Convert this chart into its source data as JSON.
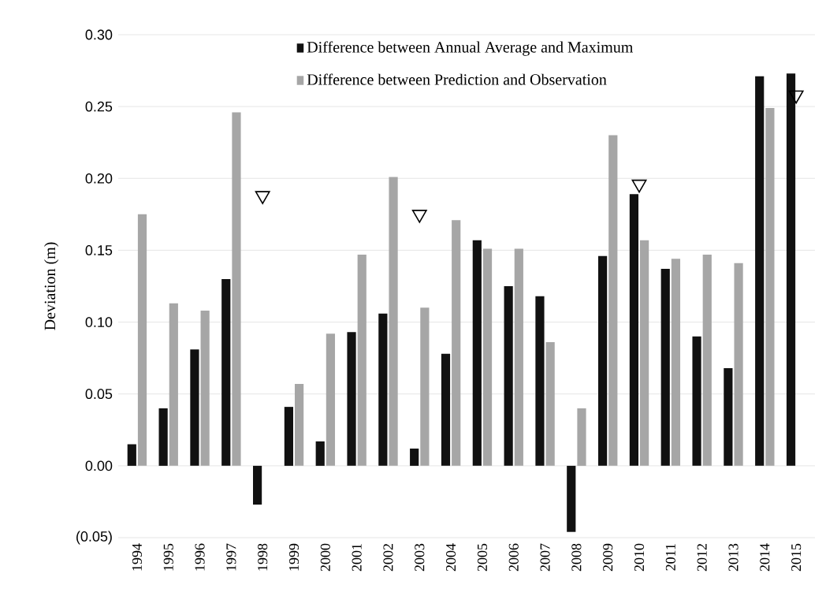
{
  "chart_data": {
    "type": "bar",
    "ylabel": "Deviation  (m)",
    "categories": [
      "1994",
      "1995",
      "1996",
      "1997",
      "1998",
      "1999",
      "2000",
      "2001",
      "2002",
      "2003",
      "2004",
      "2005",
      "2006",
      "2007",
      "2008",
      "2009",
      "2010",
      "2011",
      "2012",
      "2013",
      "2014",
      "2015"
    ],
    "series": [
      {
        "name": "Difference between Annual Average and Maximum",
        "color": "#111111",
        "values": [
          0.015,
          0.04,
          0.081,
          0.13,
          -0.027,
          0.041,
          0.017,
          0.093,
          0.106,
          0.012,
          0.078,
          0.157,
          0.125,
          0.118,
          -0.046,
          0.146,
          0.189,
          0.137,
          0.09,
          0.068,
          0.271,
          0.273
        ]
      },
      {
        "name": "Difference between Prediction and Observation",
        "color": "#a6a6a6",
        "values": [
          0.175,
          0.113,
          0.108,
          0.246,
          null,
          0.057,
          0.092,
          0.147,
          0.201,
          0.11,
          0.171,
          0.151,
          0.151,
          0.086,
          0.04,
          0.23,
          0.157,
          0.144,
          0.147,
          0.141,
          0.249,
          null
        ]
      },
      {
        "type": "scatter",
        "marker": "triangle",
        "color": "#000000",
        "values": [
          null,
          null,
          null,
          null,
          0.188,
          null,
          null,
          null,
          null,
          0.175,
          null,
          null,
          null,
          null,
          null,
          null,
          0.196,
          null,
          null,
          null,
          null,
          0.258
        ]
      }
    ],
    "ylim": [
      -0.05,
      0.3
    ],
    "yticks": [
      {
        "value": -0.05,
        "label": "(0.05)"
      },
      {
        "value": 0.0,
        "label": "0.00"
      },
      {
        "value": 0.05,
        "label": "0.05"
      },
      {
        "value": 0.1,
        "label": "0.10"
      },
      {
        "value": 0.15,
        "label": "0.15"
      },
      {
        "value": 0.2,
        "label": "0.20"
      },
      {
        "value": 0.25,
        "label": "0.25"
      },
      {
        "value": 0.3,
        "label": "0.30"
      }
    ],
    "grid": "y",
    "legend": "top"
  }
}
